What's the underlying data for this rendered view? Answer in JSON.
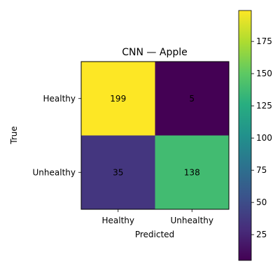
{
  "chart_data": {
    "type": "heatmap",
    "title": "CNN — Apple",
    "xlabel": "Predicted",
    "ylabel": "True",
    "x_categories": [
      "Healthy",
      "Unhealthy"
    ],
    "y_categories": [
      "Healthy",
      "Unhealthy"
    ],
    "values": [
      [
        199,
        5
      ],
      [
        35,
        138
      ]
    ],
    "colormap": "viridis",
    "color_range": [
      5,
      199
    ],
    "colorbar": {
      "ticks": [
        25,
        50,
        75,
        100,
        125,
        150,
        175
      ],
      "tick_labels": [
        "25",
        "50",
        "75",
        "100",
        "125",
        "150",
        "175"
      ]
    },
    "grid": false
  }
}
